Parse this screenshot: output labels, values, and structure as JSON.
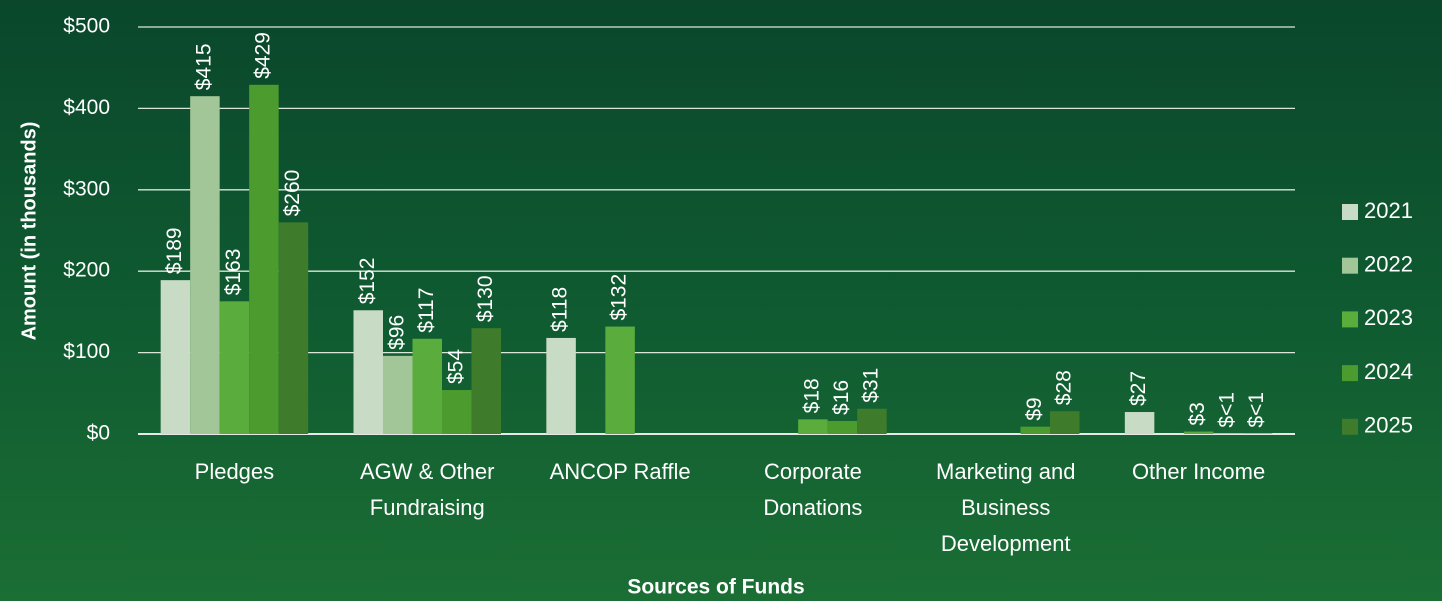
{
  "chart_data": {
    "type": "bar",
    "x_label": "Sources of Funds",
    "y_label": "Amount (in thousands)",
    "categories": [
      "Pledges",
      "AGW & Other Fundraising",
      "ANCOP Raffle",
      "Corporate Donations",
      "Marketing and Business Development",
      "Other Income"
    ],
    "series": [
      {
        "name": "2021",
        "color": "#c8dbc4",
        "values": [
          189,
          152,
          118,
          null,
          null,
          27
        ],
        "value_labels": [
          "$189",
          "$152",
          "$118",
          null,
          null,
          "$27"
        ]
      },
      {
        "name": "2022",
        "color": "#a2c698",
        "values": [
          415,
          96,
          null,
          null,
          null,
          null
        ],
        "value_labels": [
          "$415",
          "$96",
          null,
          null,
          null,
          null
        ]
      },
      {
        "name": "2023",
        "color": "#5aac3c",
        "values": [
          163,
          117,
          132,
          18,
          null,
          3
        ],
        "value_labels": [
          "$163",
          "$117",
          "$132",
          "$18",
          null,
          "$3"
        ]
      },
      {
        "name": "2024",
        "color": "#4b9b2f",
        "values": [
          429,
          54,
          null,
          16,
          9,
          0.5
        ],
        "value_labels": [
          "$429",
          "$54",
          null,
          "$16",
          "$9",
          "$<1"
        ]
      },
      {
        "name": "2025",
        "color": "#3e7b2b",
        "values": [
          260,
          130,
          null,
          31,
          28,
          0.5
        ],
        "value_labels": [
          "$260",
          "$130",
          null,
          "$31",
          "$28",
          "$<1"
        ]
      }
    ],
    "ylim": [
      0,
      500
    ],
    "yticks": [
      {
        "value": 0,
        "label": "$0"
      },
      {
        "value": 100,
        "label": "$100"
      },
      {
        "value": 200,
        "label": "$200"
      },
      {
        "value": 300,
        "label": "$300"
      },
      {
        "value": 400,
        "label": "$400"
      },
      {
        "value": 500,
        "label": "$500"
      }
    ],
    "grid": true,
    "legend": "right"
  }
}
